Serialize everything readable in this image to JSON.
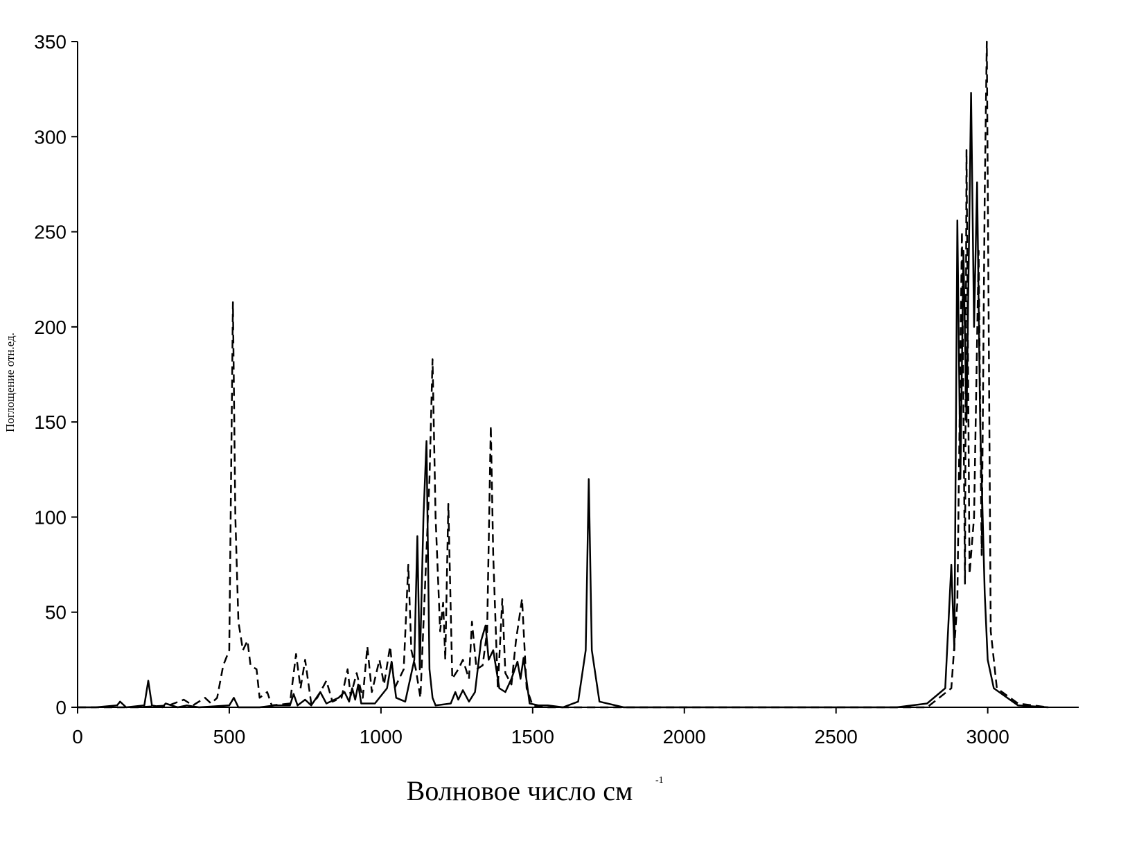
{
  "chart_data": {
    "type": "line",
    "x_label": "Волновое число см",
    "x_label_sup": "-1",
    "y_label": "Поглощение отн.ед.",
    "xlim": [
      0,
      3300
    ],
    "ylim": [
      0,
      350
    ],
    "xticks": [
      0,
      500,
      1000,
      1500,
      2000,
      2500,
      3000
    ],
    "yticks": [
      0,
      50,
      100,
      150,
      200,
      250,
      300,
      350
    ],
    "grid": false,
    "series": [
      {
        "color": "#000000",
        "dash": "solid",
        "x": [
          0,
          60,
          130,
          140,
          160,
          220,
          233,
          245,
          280,
          290,
          330,
          360,
          400,
          500,
          515,
          530,
          600,
          650,
          700,
          712,
          725,
          750,
          770,
          800,
          820,
          860,
          880,
          895,
          905,
          915,
          925,
          935,
          980,
          1020,
          1035,
          1050,
          1080,
          1110,
          1120,
          1128,
          1140,
          1150,
          1160,
          1170,
          1180,
          1230,
          1245,
          1255,
          1270,
          1290,
          1310,
          1330,
          1345,
          1355,
          1370,
          1390,
          1410,
          1430,
          1450,
          1460,
          1470,
          1490,
          1520,
          1550,
          1600,
          1650,
          1675,
          1685,
          1695,
          1720,
          1800,
          2700,
          2800,
          2860,
          2880,
          2890,
          2900,
          2910,
          2920,
          2930,
          2945,
          2955,
          2965,
          2975,
          2990,
          3000,
          3020,
          3100,
          3200
        ],
        "values": [
          0,
          0,
          1,
          3,
          0,
          1,
          14,
          1,
          0,
          2,
          0,
          1,
          0,
          1,
          5,
          0,
          0,
          1,
          1,
          7,
          1,
          4,
          1,
          8,
          2,
          5,
          8,
          3,
          10,
          4,
          12,
          2,
          2,
          10,
          24,
          5,
          3,
          25,
          90,
          20,
          100,
          140,
          20,
          5,
          1,
          2,
          8,
          4,
          9,
          3,
          8,
          35,
          43,
          25,
          30,
          10,
          8,
          15,
          24,
          15,
          26,
          2,
          1,
          1,
          0,
          3,
          30,
          120,
          30,
          3,
          0,
          0,
          2,
          10,
          75,
          30,
          256,
          120,
          240,
          150,
          323,
          200,
          276,
          150,
          60,
          25,
          10,
          1,
          0
        ]
      },
      {
        "color": "#000000",
        "dash": "dashed",
        "x": [
          0,
          200,
          300,
          350,
          380,
          420,
          440,
          460,
          480,
          500,
          512,
          520,
          530,
          545,
          560,
          570,
          590,
          600,
          625,
          640,
          700,
          720,
          735,
          750,
          770,
          790,
          820,
          840,
          870,
          890,
          900,
          920,
          940,
          955,
          970,
          995,
          1010,
          1030,
          1045,
          1075,
          1090,
          1100,
          1115,
          1130,
          1160,
          1170,
          1180,
          1195,
          1205,
          1212,
          1222,
          1235,
          1255,
          1270,
          1290,
          1300,
          1315,
          1335,
          1350,
          1362,
          1370,
          1385,
          1400,
          1410,
          1430,
          1445,
          1465,
          1480,
          1500,
          1550,
          2800,
          2880,
          2900,
          2915,
          2925,
          2930,
          2940,
          2955,
          2970,
          2980,
          2990,
          2997,
          3010,
          3030,
          3100,
          3200
        ],
        "values": [
          0,
          0,
          1,
          4,
          1,
          5,
          2,
          5,
          22,
          30,
          213,
          100,
          45,
          30,
          35,
          22,
          20,
          5,
          8,
          1,
          2,
          28,
          10,
          25,
          2,
          5,
          14,
          3,
          5,
          20,
          6,
          18,
          5,
          32,
          8,
          25,
          12,
          32,
          10,
          20,
          75,
          30,
          20,
          5,
          120,
          183,
          100,
          40,
          55,
          25,
          107,
          15,
          20,
          25,
          15,
          45,
          20,
          22,
          40,
          148,
          80,
          10,
          57,
          18,
          12,
          35,
          57,
          10,
          1,
          0,
          0,
          10,
          55,
          250,
          65,
          293,
          70,
          100,
          240,
          80,
          270,
          350,
          40,
          10,
          2,
          0
        ]
      }
    ]
  }
}
